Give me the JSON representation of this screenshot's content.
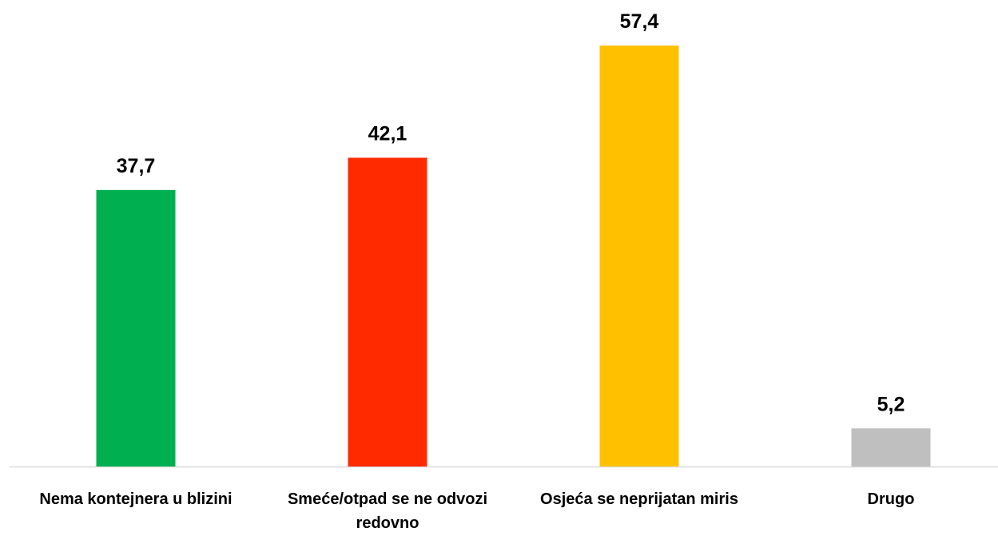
{
  "chart_data": {
    "type": "bar",
    "categories": [
      "Nema kontejnera u blizini",
      "Smeće/otpad se ne odvozi redovno",
      "Osjeća se neprijatan miris",
      "Drugo"
    ],
    "values": [
      37.7,
      42.1,
      57.4,
      5.2
    ],
    "value_labels": [
      "37,7",
      "42,1",
      "57,4",
      "5,2"
    ],
    "colors": [
      "#00b050",
      "#ff2a00",
      "#ffc000",
      "#bfbfbf"
    ]
  }
}
